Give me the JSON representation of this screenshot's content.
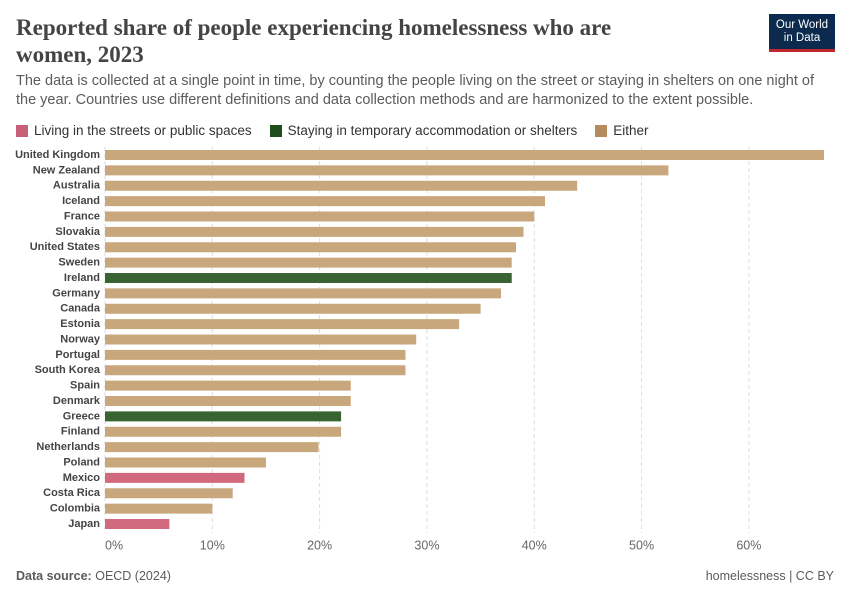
{
  "chart_data": {
    "type": "bar",
    "orientation": "horizontal",
    "title": "Reported share of people experiencing homelessness who are women, 2023",
    "subtitle": "The data is collected at a single point in time, by counting the people living on the street or staying in shelters on one night of the year. Countries use different definitions and data collection methods and are harmonized to the extent possible.",
    "logo": [
      "Our World",
      "in Data"
    ],
    "categories": [
      "United Kingdom",
      "New Zealand",
      "Australia",
      "Iceland",
      "France",
      "Slovakia",
      "United States",
      "Sweden",
      "Ireland",
      "Germany",
      "Canada",
      "Estonia",
      "Norway",
      "Portugal",
      "South Korea",
      "Spain",
      "Denmark",
      "Greece",
      "Finland",
      "Netherlands",
      "Poland",
      "Mexico",
      "Costa Rica",
      "Colombia",
      "Japan"
    ],
    "series": [
      {
        "name": "Living in the streets or public spaces",
        "color": "#d0687e",
        "values": [
          null,
          null,
          null,
          null,
          null,
          null,
          null,
          null,
          null,
          null,
          null,
          null,
          null,
          null,
          null,
          null,
          null,
          null,
          null,
          null,
          null,
          13.0,
          null,
          null,
          6.0
        ]
      },
      {
        "name": "Staying in temporary accommodation or shelters",
        "color": "#3a6334",
        "values": [
          null,
          null,
          null,
          null,
          null,
          null,
          null,
          null,
          37.9,
          null,
          null,
          null,
          null,
          null,
          null,
          null,
          null,
          22.0,
          null,
          null,
          null,
          null,
          null,
          null,
          null
        ]
      },
      {
        "name": "Either",
        "color": "#c9a77c",
        "values": [
          67.0,
          52.5,
          44.0,
          41.0,
          40.0,
          39.0,
          38.3,
          37.9,
          null,
          36.9,
          35.0,
          33.0,
          29.0,
          28.0,
          28.0,
          22.9,
          22.9,
          null,
          22.0,
          19.9,
          15.0,
          null,
          11.9,
          10.0,
          null
        ]
      }
    ],
    "legend_colors": [
      "#c9607a",
      "#1f4d1b",
      "#b58a5c"
    ],
    "xlim": [
      0,
      67
    ],
    "xticks": [
      {
        "value": 0,
        "label": "0%"
      },
      {
        "value": 10,
        "label": "10%"
      },
      {
        "value": 20,
        "label": "20%"
      },
      {
        "value": 30,
        "label": "30%"
      },
      {
        "value": 40,
        "label": "40%"
      },
      {
        "value": 50,
        "label": "50%"
      },
      {
        "value": 60,
        "label": "60%"
      }
    ],
    "grid": true,
    "source_label": "Data source:",
    "source": "OECD (2024)",
    "footer_right": "homelessness | CC BY"
  }
}
